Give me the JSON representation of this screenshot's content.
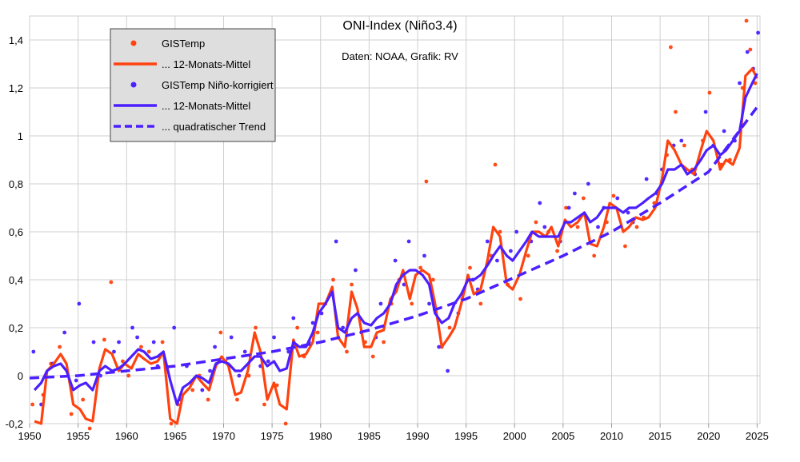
{
  "chart_data": {
    "type": "line",
    "title": "ONI-Index (Niño3.4)",
    "subtitle": "Daten: NOAA, Grafik: RV",
    "xlabel": "",
    "ylabel": "",
    "xlim": [
      1950,
      2025.3
    ],
    "ylim": [
      -0.2,
      1.5
    ],
    "grid": true,
    "legend_position": "top-left",
    "x_ticks": [
      1950,
      1955,
      1960,
      1965,
      1970,
      1975,
      1980,
      1985,
      1990,
      1995,
      2000,
      2005,
      2010,
      2015,
      2020,
      2025
    ],
    "y_ticks": [
      -0.2,
      0,
      0.2,
      0.4,
      0.6,
      0.8,
      1,
      1.2,
      1.4
    ],
    "y_tick_labels": [
      "-0,2",
      "0",
      "0,2",
      "0,4",
      "0,6",
      "0,8",
      "1",
      "1,2",
      "1,4"
    ],
    "colors": {
      "orange": "#ff420e",
      "blue": "#4b1fff"
    },
    "legend": [
      {
        "label": "GISTemp",
        "style": "dot",
        "color": "#ff420e"
      },
      {
        "label": "... 12-Monats-Mittel",
        "style": "line",
        "color": "#ff420e"
      },
      {
        "label": "GISTemp Niño-korrigiert",
        "style": "dot",
        "color": "#4b1fff"
      },
      {
        "label": "... 12-Monats-Mittel",
        "style": "line",
        "color": "#4b1fff"
      },
      {
        "label": "... quadratischer Trend",
        "style": "dashed",
        "color": "#4b1fff"
      }
    ],
    "series": [
      {
        "name": "GISTemp 12-Monats-Mittel",
        "style": "line",
        "color": "#ff420e",
        "x": [
          1950.5,
          1951.2,
          1951.8,
          1952.5,
          1953.2,
          1953.8,
          1954.5,
          1955.2,
          1955.8,
          1956.5,
          1957.2,
          1957.8,
          1958.5,
          1959.2,
          1959.8,
          1960.5,
          1961.2,
          1961.8,
          1962.5,
          1963.2,
          1963.8,
          1964.5,
          1965.2,
          1965.8,
          1966.5,
          1967.2,
          1967.8,
          1968.5,
          1969.2,
          1969.8,
          1970.5,
          1971.2,
          1971.8,
          1972.5,
          1973.2,
          1973.8,
          1974.5,
          1975.2,
          1975.8,
          1976.5,
          1977.2,
          1977.8,
          1978.5,
          1979.2,
          1979.8,
          1980.5,
          1981.2,
          1981.8,
          1982.5,
          1983.2,
          1983.8,
          1984.5,
          1985.2,
          1985.8,
          1986.5,
          1987.2,
          1987.8,
          1988.5,
          1989.2,
          1989.8,
          1990.5,
          1991.2,
          1991.8,
          1992.5,
          1993.2,
          1993.8,
          1994.5,
          1995.2,
          1995.8,
          1996.5,
          1997.2,
          1997.8,
          1998.5,
          1999.2,
          1999.8,
          2000.5,
          2001.2,
          2001.8,
          2002.5,
          2003.2,
          2003.8,
          2004.5,
          2005.2,
          2005.8,
          2006.5,
          2007.2,
          2007.8,
          2008.5,
          2009.2,
          2009.8,
          2010.5,
          2011.2,
          2011.8,
          2012.5,
          2013.2,
          2013.8,
          2014.5,
          2015.2,
          2015.8,
          2016.5,
          2017.2,
          2017.8,
          2018.5,
          2019.2,
          2019.8,
          2020.5,
          2021.2,
          2021.8,
          2022.5,
          2023.2,
          2023.8,
          2024.5,
          2025.0
        ],
        "values": [
          -0.19,
          -0.2,
          0.02,
          0.05,
          0.09,
          0.05,
          -0.12,
          -0.14,
          -0.18,
          -0.19,
          0.03,
          0.11,
          0.09,
          0.02,
          0.05,
          0.03,
          0.09,
          0.07,
          0.05,
          0.06,
          0.1,
          -0.18,
          -0.2,
          -0.08,
          -0.05,
          0.0,
          -0.03,
          -0.06,
          0.04,
          0.08,
          0.04,
          -0.08,
          -0.07,
          0.02,
          0.18,
          0.1,
          -0.1,
          -0.03,
          -0.12,
          -0.14,
          0.15,
          0.08,
          0.09,
          0.14,
          0.3,
          0.3,
          0.37,
          0.16,
          0.12,
          0.35,
          0.28,
          0.12,
          0.12,
          0.18,
          0.19,
          0.32,
          0.35,
          0.44,
          0.32,
          0.42,
          0.44,
          0.42,
          0.3,
          0.12,
          0.16,
          0.2,
          0.3,
          0.42,
          0.34,
          0.36,
          0.48,
          0.62,
          0.58,
          0.38,
          0.36,
          0.42,
          0.52,
          0.6,
          0.6,
          0.58,
          0.62,
          0.54,
          0.65,
          0.62,
          0.64,
          0.68,
          0.55,
          0.54,
          0.62,
          0.72,
          0.7,
          0.6,
          0.62,
          0.66,
          0.65,
          0.66,
          0.7,
          0.82,
          0.98,
          0.94,
          0.88,
          0.86,
          0.84,
          0.94,
          1.02,
          0.98,
          0.86,
          0.9,
          0.88,
          0.95,
          1.25,
          1.28,
          1.24
        ]
      },
      {
        "name": "GISTemp Niño-korrigiert 12-Monats-Mittel",
        "style": "line",
        "color": "#4b1fff",
        "x": [
          1950.5,
          1951.2,
          1951.8,
          1952.5,
          1953.2,
          1953.8,
          1954.5,
          1955.2,
          1955.8,
          1956.5,
          1957.2,
          1957.8,
          1958.5,
          1959.2,
          1959.8,
          1960.5,
          1961.2,
          1961.8,
          1962.5,
          1963.2,
          1963.8,
          1964.5,
          1965.2,
          1965.8,
          1966.5,
          1967.2,
          1967.8,
          1968.5,
          1969.2,
          1969.8,
          1970.5,
          1971.2,
          1971.8,
          1972.5,
          1973.2,
          1973.8,
          1974.5,
          1975.2,
          1975.8,
          1976.5,
          1977.2,
          1977.8,
          1978.5,
          1979.2,
          1979.8,
          1980.5,
          1981.2,
          1981.8,
          1982.5,
          1983.2,
          1983.8,
          1984.5,
          1985.2,
          1985.8,
          1986.5,
          1987.2,
          1987.8,
          1988.5,
          1989.2,
          1989.8,
          1990.5,
          1991.2,
          1991.8,
          1992.5,
          1993.2,
          1993.8,
          1994.5,
          1995.2,
          1995.8,
          1996.5,
          1997.2,
          1997.8,
          1998.5,
          1999.2,
          1999.8,
          2000.5,
          2001.2,
          2001.8,
          2002.5,
          2003.2,
          2003.8,
          2004.5,
          2005.2,
          2005.8,
          2006.5,
          2007.2,
          2007.8,
          2008.5,
          2009.2,
          2009.8,
          2010.5,
          2011.2,
          2011.8,
          2012.5,
          2013.2,
          2013.8,
          2014.5,
          2015.2,
          2015.8,
          2016.5,
          2017.2,
          2017.8,
          2018.5,
          2019.2,
          2019.8,
          2020.5,
          2021.2,
          2021.8,
          2022.5,
          2023.2,
          2023.8,
          2024.5,
          2025.0
        ],
        "values": [
          -0.06,
          -0.03,
          0.02,
          0.04,
          0.05,
          0.02,
          -0.06,
          -0.04,
          -0.03,
          -0.06,
          0.02,
          0.04,
          0.02,
          0.03,
          0.05,
          0.08,
          0.11,
          0.1,
          0.07,
          0.08,
          0.1,
          -0.02,
          -0.12,
          -0.05,
          -0.03,
          0.0,
          -0.01,
          -0.03,
          0.05,
          0.06,
          0.05,
          0.02,
          0.02,
          0.05,
          0.08,
          0.08,
          0.04,
          0.06,
          0.02,
          0.03,
          0.14,
          0.12,
          0.12,
          0.18,
          0.26,
          0.3,
          0.35,
          0.2,
          0.18,
          0.24,
          0.26,
          0.22,
          0.21,
          0.24,
          0.26,
          0.3,
          0.38,
          0.42,
          0.44,
          0.44,
          0.42,
          0.38,
          0.26,
          0.22,
          0.24,
          0.3,
          0.34,
          0.4,
          0.4,
          0.42,
          0.46,
          0.5,
          0.54,
          0.5,
          0.48,
          0.52,
          0.56,
          0.6,
          0.58,
          0.58,
          0.58,
          0.58,
          0.64,
          0.64,
          0.66,
          0.68,
          0.64,
          0.66,
          0.7,
          0.7,
          0.7,
          0.68,
          0.7,
          0.7,
          0.72,
          0.74,
          0.76,
          0.8,
          0.86,
          0.86,
          0.88,
          0.84,
          0.86,
          0.9,
          0.94,
          0.96,
          0.92,
          0.94,
          0.98,
          1.02,
          1.16,
          1.22,
          1.26
        ]
      },
      {
        "name": "quadratischer Trend",
        "style": "dashed",
        "color": "#4b1fff",
        "x": [
          1950,
          1955,
          1960,
          1965,
          1970,
          1975,
          1980,
          1985,
          1990,
          1995,
          2000,
          2005,
          2010,
          2015,
          2020,
          2025
        ],
        "values": [
          -0.01,
          0.0,
          0.02,
          0.04,
          0.07,
          0.1,
          0.14,
          0.19,
          0.25,
          0.32,
          0.41,
          0.5,
          0.6,
          0.72,
          0.85,
          1.12
        ]
      },
      {
        "name": "GISTemp",
        "style": "dot",
        "color": "#ff420e",
        "x": [
          1950.3,
          1951.4,
          1952.2,
          1953.1,
          1954.3,
          1955.5,
          1956.2,
          1957.7,
          1958.4,
          1959.6,
          1960.2,
          1961.5,
          1962.3,
          1963.7,
          1964.6,
          1965.3,
          1966.8,
          1967.5,
          1968.4,
          1969.7,
          1970.2,
          1971.4,
          1972.6,
          1973.3,
          1974.2,
          1975.5,
          1976.4,
          1977.6,
          1978.3,
          1979.7,
          1980.5,
          1981.3,
          1982.7,
          1983.2,
          1984.6,
          1985.4,
          1986.5,
          1987.3,
          1988.1,
          1989.4,
          1990.3,
          1990.9,
          1991.6,
          1992.5,
          1993.3,
          1994.6,
          1995.4,
          1996.5,
          1997.6,
          1998.0,
          1998.5,
          1999.3,
          2000.6,
          2001.4,
          2002.2,
          2003.5,
          2004.4,
          2005.3,
          2006.5,
          2007.1,
          2008.2,
          2009.5,
          2010.2,
          2011.4,
          2012.6,
          2013.3,
          2014.4,
          2015.7,
          2016.1,
          2016.6,
          2017.5,
          2018.3,
          2019.4,
          2020.1,
          2021.3,
          2022.2,
          2023.5,
          2023.9,
          2024.3,
          2024.8
        ],
        "values": [
          -0.12,
          -0.08,
          0.05,
          0.12,
          -0.16,
          -0.1,
          -0.22,
          0.15,
          0.39,
          0.06,
          0.0,
          0.12,
          0.1,
          0.14,
          -0.2,
          -0.12,
          -0.06,
          0.0,
          -0.1,
          0.18,
          0.06,
          -0.1,
          0.0,
          0.2,
          -0.12,
          -0.04,
          -0.2,
          0.2,
          0.08,
          0.18,
          0.3,
          0.4,
          0.1,
          0.38,
          0.14,
          0.08,
          0.14,
          0.3,
          0.4,
          0.3,
          0.45,
          0.81,
          0.4,
          0.12,
          0.2,
          0.32,
          0.45,
          0.3,
          0.5,
          0.88,
          0.6,
          0.38,
          0.32,
          0.5,
          0.64,
          0.6,
          0.52,
          0.7,
          0.62,
          0.74,
          0.5,
          0.64,
          0.75,
          0.54,
          0.62,
          0.66,
          0.72,
          0.92,
          1.37,
          1.1,
          0.96,
          0.86,
          0.98,
          1.18,
          0.88,
          0.9,
          1.2,
          1.48,
          1.36,
          1.22
        ]
      },
      {
        "name": "GISTemp Niño-korrigiert",
        "style": "dot",
        "color": "#4b1fff",
        "x": [
          1950.4,
          1951.2,
          1952.4,
          1953.6,
          1954.8,
          1955.1,
          1956.6,
          1957.3,
          1958.7,
          1959.2,
          1960.6,
          1961.1,
          1962.8,
          1963.2,
          1964.9,
          1965.6,
          1966.2,
          1967.8,
          1968.6,
          1969.1,
          1970.8,
          1971.6,
          1972.2,
          1973.8,
          1974.6,
          1975.2,
          1976.7,
          1977.2,
          1978.8,
          1979.2,
          1980.1,
          1981.6,
          1982.3,
          1983.6,
          1984.2,
          1985.7,
          1986.2,
          1987.7,
          1988.6,
          1989.1,
          1990.7,
          1991.2,
          1992.2,
          1993.1,
          1994.2,
          1995.7,
          1996.2,
          1997.2,
          1998.2,
          1999.6,
          2000.2,
          2001.7,
          2002.6,
          2003.1,
          2004.7,
          2005.6,
          2006.2,
          2007.6,
          2008.6,
          2009.2,
          2010.6,
          2011.7,
          2012.2,
          2013.6,
          2014.7,
          2015.2,
          2016.4,
          2017.2,
          2018.6,
          2019.7,
          2020.5,
          2021.6,
          2022.7,
          2023.2,
          2024.0,
          2024.6,
          2025.1
        ],
        "values": [
          0.1,
          -0.12,
          0.05,
          0.18,
          -0.02,
          0.3,
          0.14,
          0.0,
          0.1,
          0.14,
          0.2,
          0.16,
          0.14,
          0.04,
          0.2,
          -0.1,
          0.04,
          -0.06,
          0.02,
          0.12,
          0.16,
          0.0,
          0.1,
          0.04,
          0.06,
          0.16,
          0.1,
          0.24,
          0.14,
          0.22,
          0.26,
          0.56,
          0.2,
          0.44,
          0.18,
          0.16,
          0.3,
          0.48,
          0.38,
          0.56,
          0.5,
          0.3,
          0.12,
          0.02,
          0.26,
          0.4,
          0.36,
          0.56,
          0.48,
          0.52,
          0.6,
          0.56,
          0.72,
          0.62,
          0.56,
          0.7,
          0.76,
          0.8,
          0.62,
          0.7,
          0.74,
          0.68,
          0.64,
          0.82,
          0.76,
          0.86,
          0.96,
          0.98,
          0.84,
          1.1,
          0.96,
          1.02,
          0.98,
          1.22,
          1.35,
          1.28,
          1.43
        ]
      }
    ]
  }
}
